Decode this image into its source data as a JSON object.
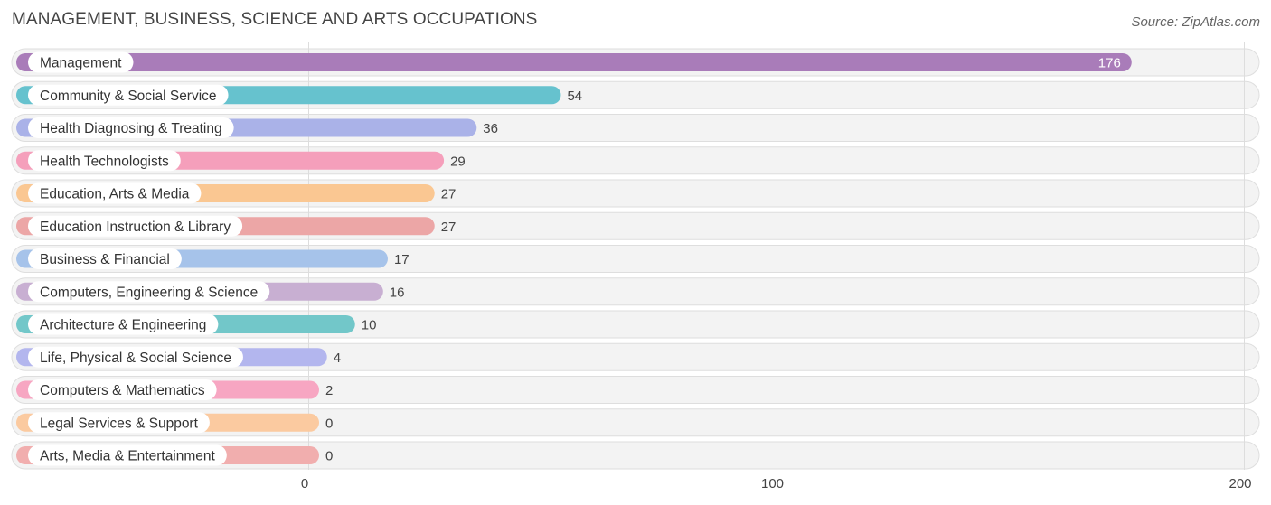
{
  "header": {
    "title": "MANAGEMENT, BUSINESS, SCIENCE AND ARTS OCCUPATIONS",
    "source": "Source: ZipAtlas.com"
  },
  "chart_data": {
    "type": "bar",
    "orientation": "horizontal",
    "title": "MANAGEMENT, BUSINESS, SCIENCE AND ARTS OCCUPATIONS",
    "xlabel": "",
    "ylabel": "",
    "xlim": [
      0,
      200
    ],
    "xticks": [
      0,
      100,
      200
    ],
    "xtick_labels": [
      "0",
      "100",
      "200"
    ],
    "grid": true,
    "categories": [
      "Management",
      "Community & Social Service",
      "Health Diagnosing & Treating",
      "Health Technologists",
      "Education, Arts & Media",
      "Education Instruction & Library",
      "Business & Financial",
      "Computers, Engineering & Science",
      "Architecture & Engineering",
      "Life, Physical & Social Science",
      "Computers & Mathematics",
      "Legal Services & Support",
      "Arts, Media & Entertainment"
    ],
    "values": [
      176,
      54,
      36,
      29,
      27,
      27,
      17,
      16,
      10,
      4,
      2,
      0,
      0
    ],
    "value_labels": [
      "176",
      "54",
      "36",
      "29",
      "27",
      "27",
      "17",
      "16",
      "10",
      "4",
      "2",
      "0",
      "0"
    ],
    "colors": [
      "#a97cb9",
      "#66c2ce",
      "#aab2e8",
      "#f59fbb",
      "#fac792",
      "#eca6a6",
      "#a6c3ea",
      "#c8afd2",
      "#72c7c9",
      "#b3b6ee",
      "#f7a6c2",
      "#fbcaa0",
      "#f1aeae"
    ]
  }
}
